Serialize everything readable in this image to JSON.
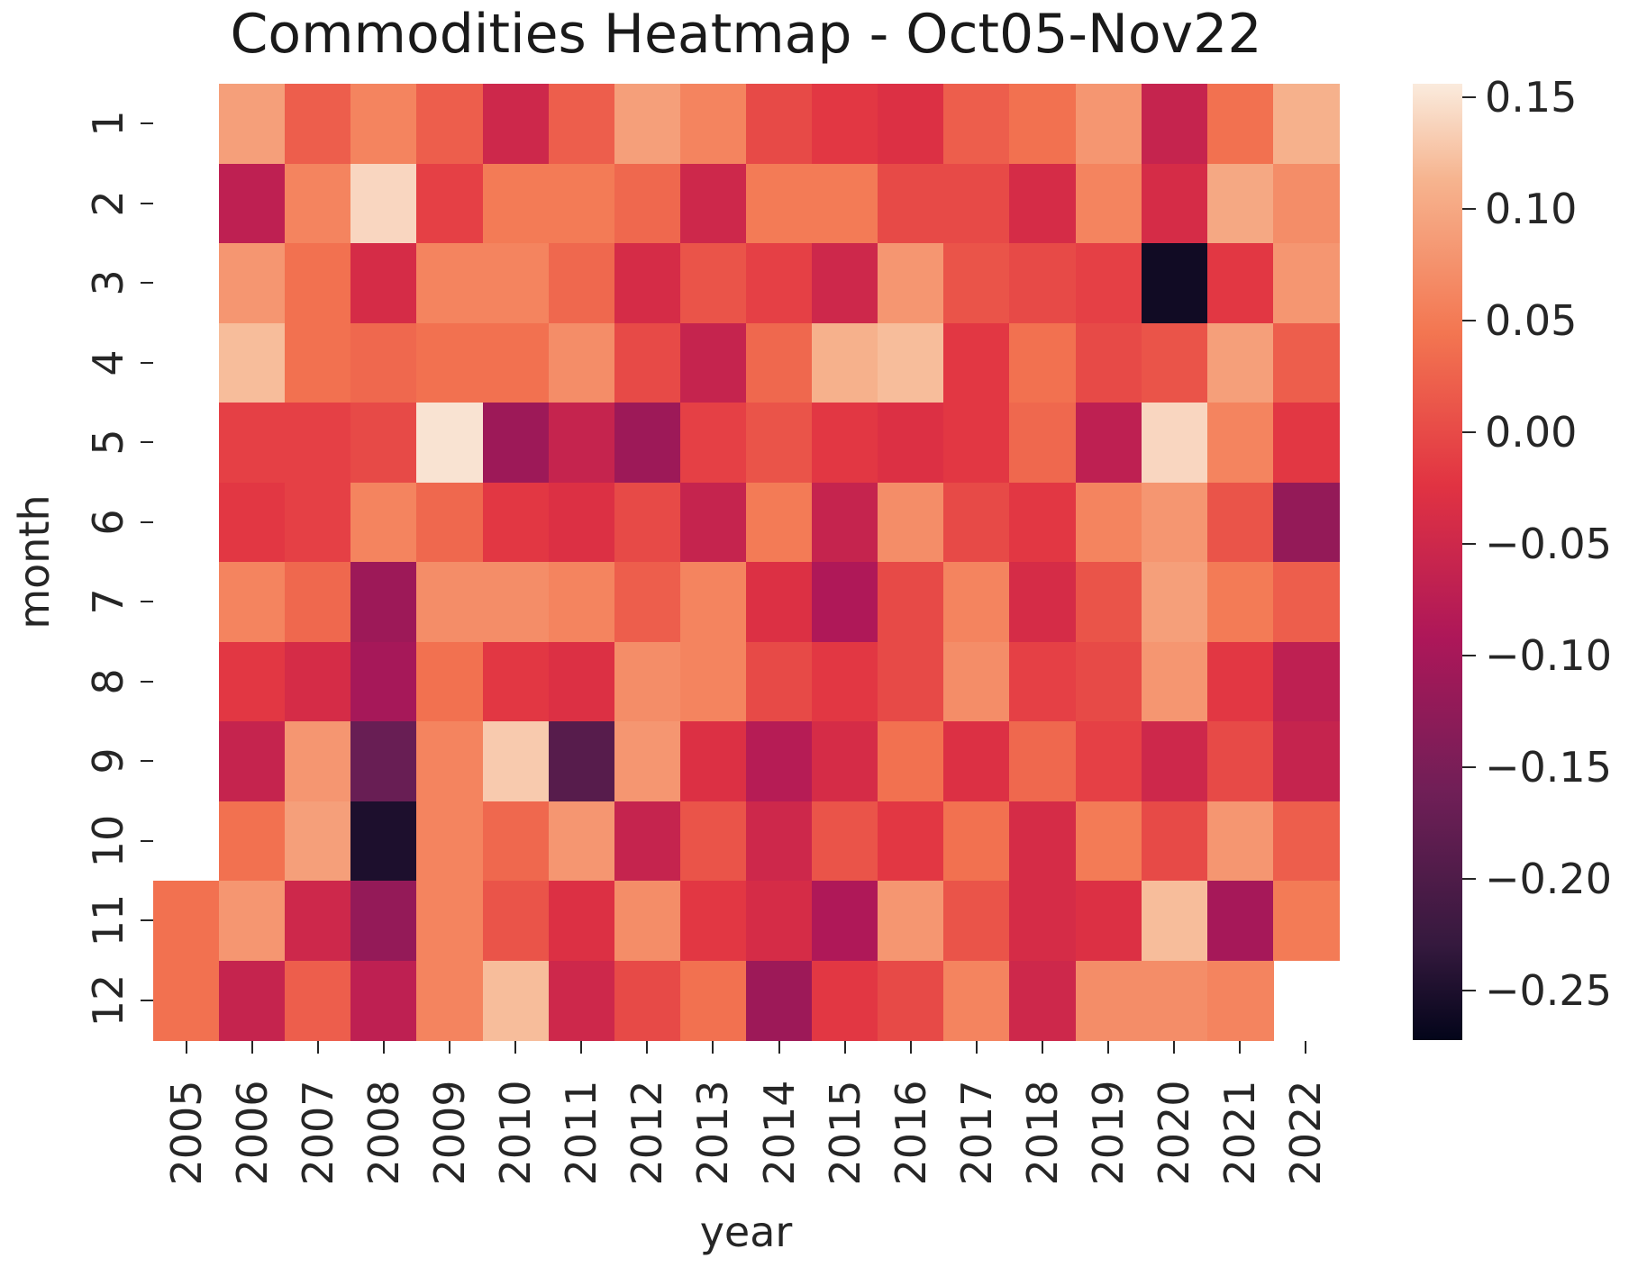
{
  "title": "Commodities Heatmap - Oct05-Nov22",
  "axes": {
    "x_label": "year",
    "y_label": "month",
    "x_tick_labels": [
      "2005",
      "2006",
      "2007",
      "2008",
      "2009",
      "2010",
      "2011",
      "2012",
      "2013",
      "2014",
      "2015",
      "2016",
      "2017",
      "2018",
      "2019",
      "2020",
      "2021",
      "2022"
    ],
    "y_tick_labels": [
      "1",
      "2",
      "3",
      "4",
      "5",
      "6",
      "7",
      "8",
      "9",
      "10",
      "11",
      "12"
    ]
  },
  "colorbar": {
    "tick_values": [
      0.15,
      0.1,
      0.05,
      0.0,
      -0.05,
      -0.1,
      -0.15,
      -0.2,
      -0.25
    ],
    "tick_labels": [
      "0.15",
      "0.10",
      "0.05",
      "0.00",
      "−0.05",
      "−0.10",
      "−0.15",
      "−0.20",
      "−0.25"
    ]
  },
  "chart_data": {
    "type": "heatmap",
    "title": "Commodities Heatmap - Oct05-Nov22",
    "xlabel": "year",
    "ylabel": "month",
    "x": [
      "2005",
      "2006",
      "2007",
      "2008",
      "2009",
      "2010",
      "2011",
      "2012",
      "2013",
      "2014",
      "2015",
      "2016",
      "2017",
      "2018",
      "2019",
      "2020",
      "2021",
      "2022"
    ],
    "y": [
      1,
      2,
      3,
      4,
      5,
      6,
      7,
      8,
      9,
      10,
      11,
      12
    ],
    "vmin": -0.272,
    "vmax": 0.156,
    "colormap": "rocket",
    "colormap_stops": [
      {
        "t": 0.0,
        "color": "#03051A"
      },
      {
        "t": 0.1,
        "color": "#35193E"
      },
      {
        "t": 0.26,
        "color": "#701F57"
      },
      {
        "t": 0.42,
        "color": "#AD1759"
      },
      {
        "t": 0.58,
        "color": "#E13342"
      },
      {
        "t": 0.74,
        "color": "#F37651"
      },
      {
        "t": 0.9,
        "color": "#F6B48F"
      },
      {
        "t": 1.0,
        "color": "#FAEBDD"
      }
    ],
    "missing_color": "#FFFFFF",
    "grid": false,
    "legend_position": "right-colorbar",
    "values": [
      [
        null,
        0.09,
        0.02,
        0.06,
        0.02,
        -0.05,
        0.02,
        0.09,
        0.06,
        0.0,
        -0.02,
        -0.03,
        0.02,
        0.04,
        0.08,
        -0.06,
        0.04,
        0.11
      ],
      [
        null,
        -0.07,
        0.06,
        0.14,
        -0.01,
        0.05,
        0.05,
        0.03,
        -0.05,
        0.05,
        0.05,
        0.0,
        0.0,
        -0.04,
        0.06,
        -0.04,
        0.1,
        0.07
      ],
      [
        null,
        0.08,
        0.04,
        -0.04,
        0.06,
        0.06,
        0.03,
        -0.04,
        0.01,
        -0.01,
        -0.05,
        0.08,
        0.01,
        0.0,
        -0.01,
        -0.26,
        -0.02,
        0.08
      ],
      [
        null,
        0.12,
        0.04,
        0.03,
        0.04,
        0.04,
        0.07,
        0.0,
        -0.06,
        0.03,
        0.11,
        0.12,
        -0.02,
        0.04,
        0.0,
        0.01,
        0.09,
        0.02
      ],
      [
        null,
        -0.01,
        -0.01,
        0.0,
        0.15,
        -0.11,
        -0.06,
        -0.11,
        -0.01,
        0.01,
        -0.02,
        -0.03,
        -0.02,
        0.03,
        -0.07,
        0.14,
        0.06,
        -0.02
      ],
      [
        null,
        -0.02,
        -0.01,
        0.06,
        0.03,
        -0.02,
        -0.03,
        0.0,
        -0.06,
        0.05,
        -0.06,
        0.07,
        0.0,
        -0.02,
        0.06,
        0.08,
        0.01,
        -0.12
      ],
      [
        null,
        0.06,
        0.03,
        -0.11,
        0.07,
        0.07,
        0.06,
        0.02,
        0.06,
        -0.03,
        -0.09,
        0.0,
        0.06,
        -0.04,
        0.01,
        0.09,
        0.05,
        0.02
      ],
      [
        null,
        -0.02,
        -0.04,
        -0.1,
        0.04,
        -0.02,
        -0.03,
        0.07,
        0.06,
        0.0,
        -0.02,
        0.0,
        0.07,
        -0.01,
        0.0,
        0.08,
        -0.02,
        -0.07
      ],
      [
        null,
        -0.06,
        0.08,
        -0.17,
        0.06,
        0.13,
        -0.19,
        0.08,
        -0.03,
        -0.08,
        -0.04,
        0.04,
        -0.03,
        0.03,
        -0.01,
        -0.05,
        0.0,
        -0.06
      ],
      [
        null,
        0.04,
        0.09,
        -0.25,
        0.06,
        0.03,
        0.08,
        -0.06,
        0.01,
        -0.05,
        0.01,
        -0.02,
        0.04,
        -0.04,
        0.05,
        0.0,
        0.08,
        0.02
      ],
      [
        0.04,
        0.08,
        -0.05,
        -0.12,
        0.06,
        0.01,
        -0.03,
        0.07,
        -0.02,
        -0.04,
        -0.09,
        0.08,
        0.01,
        -0.04,
        -0.03,
        0.12,
        -0.1,
        0.05
      ],
      [
        0.04,
        -0.06,
        0.02,
        -0.07,
        0.06,
        0.12,
        -0.05,
        0.0,
        0.04,
        -0.11,
        -0.02,
        0.0,
        0.06,
        -0.05,
        0.07,
        0.07,
        0.06,
        null
      ]
    ]
  }
}
